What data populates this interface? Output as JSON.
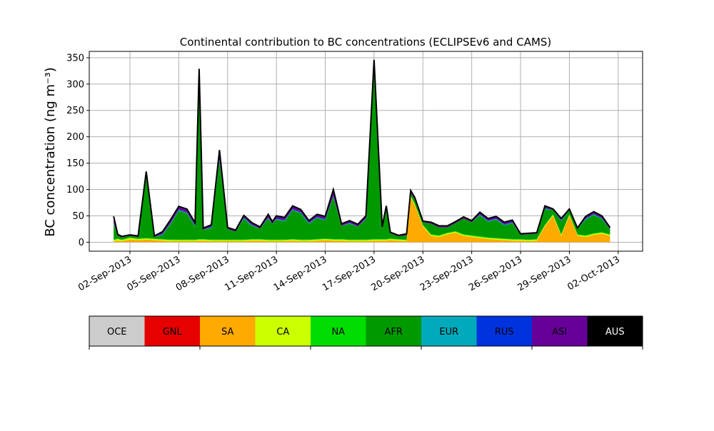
{
  "chart_data": {
    "type": "area",
    "title": "Continental contribution to BC concentrations (ECLIPSEv6 and CAMS)",
    "ylabel": "BC concentration (ng m⁻³)",
    "xlabel": "",
    "xlim": [
      "2013-08-30T12:00",
      "2013-10-03T12:00"
    ],
    "ylim": [
      -17,
      362
    ],
    "grid": true,
    "x_ticks": [
      "02-Sep-2013",
      "05-Sep-2013",
      "08-Sep-2013",
      "11-Sep-2013",
      "14-Sep-2013",
      "17-Sep-2013",
      "20-Sep-2013",
      "23-Sep-2013",
      "26-Sep-2013",
      "29-Sep-2013",
      "02-Oct-2013"
    ],
    "y_ticks": [
      0,
      50,
      100,
      150,
      200,
      250,
      300,
      350
    ],
    "x": [
      "2013-09-01T00:00",
      "2013-09-01T06:00",
      "2013-09-01T12:00",
      "2013-09-02T00:00",
      "2013-09-02T12:00",
      "2013-09-03T00:00",
      "2013-09-03T12:00",
      "2013-09-04T00:00",
      "2013-09-04T12:00",
      "2013-09-05T00:00",
      "2013-09-05T12:00",
      "2013-09-06T00:00",
      "2013-09-06T06:00",
      "2013-09-06T12:00",
      "2013-09-07T00:00",
      "2013-09-07T12:00",
      "2013-09-08T00:00",
      "2013-09-08T12:00",
      "2013-09-09T00:00",
      "2013-09-09T12:00",
      "2013-09-10T00:00",
      "2013-09-10T12:00",
      "2013-09-10T18:00",
      "2013-09-11T00:00",
      "2013-09-11T12:00",
      "2013-09-12T00:00",
      "2013-09-12T12:00",
      "2013-09-13T00:00",
      "2013-09-13T12:00",
      "2013-09-14T00:00",
      "2013-09-14T12:00",
      "2013-09-15T00:00",
      "2013-09-15T12:00",
      "2013-09-16T00:00",
      "2013-09-16T12:00",
      "2013-09-17T00:00",
      "2013-09-17T12:00",
      "2013-09-17T18:00",
      "2013-09-18T00:00",
      "2013-09-18T12:00",
      "2013-09-19T00:00",
      "2013-09-19T06:00",
      "2013-09-19T12:00",
      "2013-09-20T00:00",
      "2013-09-20T12:00",
      "2013-09-21T00:00",
      "2013-09-21T12:00",
      "2013-09-22T00:00",
      "2013-09-22T12:00",
      "2013-09-23T00:00",
      "2013-09-23T12:00",
      "2013-09-24T00:00",
      "2013-09-24T12:00",
      "2013-09-25T00:00",
      "2013-09-25T12:00",
      "2013-09-26T00:00",
      "2013-09-26T12:00",
      "2013-09-27T00:00",
      "2013-09-27T12:00",
      "2013-09-28T00:00",
      "2013-09-28T12:00",
      "2013-09-29T00:00",
      "2013-09-29T12:00",
      "2013-09-30T00:00",
      "2013-09-30T12:00",
      "2013-10-01T00:00",
      "2013-10-01T12:00"
    ],
    "series": [
      {
        "name": "OCE",
        "color": "#cccccc",
        "values": [
          0,
          0,
          0,
          0,
          0,
          0,
          0,
          0,
          0,
          0,
          0,
          0,
          0,
          0,
          0,
          0,
          0,
          0,
          0,
          0,
          0,
          0,
          0,
          0,
          0,
          0,
          0,
          0,
          0,
          0,
          0,
          0,
          0,
          0,
          0,
          0,
          0,
          0,
          0,
          0,
          0,
          0,
          0,
          0,
          0,
          0,
          0,
          0,
          0,
          0,
          0,
          0,
          0,
          0,
          0,
          0,
          0,
          0,
          0,
          0,
          0,
          0,
          0,
          0,
          0,
          0,
          0
        ]
      },
      {
        "name": "GNL",
        "color": "#e60000",
        "values": [
          0,
          0,
          0,
          0,
          0,
          0,
          0,
          0,
          0,
          0,
          0,
          0,
          0,
          0,
          0,
          0,
          0,
          0,
          0,
          0,
          0,
          0,
          0,
          0,
          0,
          0,
          0,
          0,
          0,
          0,
          0,
          0,
          0,
          0,
          0,
          0,
          0,
          0,
          0,
          0,
          0,
          0,
          0,
          0,
          0,
          0,
          0,
          0,
          0,
          0,
          0,
          0,
          0,
          0,
          0,
          0,
          0,
          0,
          0,
          0,
          0,
          0,
          0,
          0,
          0,
          0,
          0
        ]
      },
      {
        "name": "SA",
        "color": "#ffaa00",
        "values": [
          2,
          3,
          2,
          5,
          4,
          5,
          4,
          3,
          2,
          2,
          2,
          2,
          3,
          3,
          2,
          2,
          2,
          2,
          2,
          3,
          3,
          2,
          2,
          2,
          2,
          3,
          2,
          2,
          3,
          4,
          3,
          3,
          2,
          2,
          2,
          3,
          3,
          3,
          4,
          3,
          2,
          85,
          70,
          30,
          12,
          10,
          15,
          18,
          12,
          10,
          8,
          6,
          5,
          4,
          3,
          3,
          2,
          3,
          30,
          50,
          12,
          50,
          12,
          10,
          14,
          16,
          12
        ]
      },
      {
        "name": "CA",
        "color": "#ccff00",
        "values": [
          2,
          3,
          2,
          3,
          2,
          2,
          2,
          2,
          2,
          2,
          2,
          2,
          2,
          2,
          2,
          2,
          2,
          2,
          2,
          2,
          2,
          2,
          2,
          2,
          2,
          2,
          2,
          2,
          2,
          2,
          2,
          2,
          2,
          2,
          2,
          2,
          2,
          2,
          2,
          2,
          2,
          2,
          2,
          2,
          2,
          2,
          2,
          2,
          2,
          2,
          2,
          2,
          2,
          2,
          2,
          2,
          2,
          2,
          2,
          2,
          2,
          2,
          2,
          2,
          2,
          2,
          2
        ]
      },
      {
        "name": "NA",
        "color": "#00dd00",
        "values": [
          1,
          1,
          1,
          1,
          1,
          1,
          1,
          1,
          1,
          1,
          1,
          1,
          1,
          1,
          1,
          1,
          1,
          1,
          1,
          1,
          1,
          1,
          1,
          1,
          1,
          1,
          1,
          1,
          1,
          1,
          1,
          1,
          1,
          1,
          1,
          1,
          1,
          1,
          1,
          1,
          1,
          1,
          1,
          1,
          1,
          1,
          1,
          1,
          1,
          1,
          1,
          1,
          1,
          1,
          1,
          1,
          1,
          1,
          1,
          1,
          1,
          1,
          1,
          1,
          1,
          1,
          1
        ]
      },
      {
        "name": "AFR",
        "color": "#009900",
        "values": [
          30,
          5,
          4,
          3,
          3,
          120,
          3,
          8,
          30,
          55,
          50,
          25,
          300,
          18,
          22,
          150,
          20,
          15,
          40,
          25,
          20,
          40,
          30,
          38,
          35,
          55,
          50,
          30,
          40,
          35,
          80,
          25,
          30,
          25,
          38,
          330,
          20,
          55,
          10,
          5,
          8,
          5,
          8,
          5,
          20,
          15,
          10,
          15,
          30,
          25,
          40,
          30,
          35,
          25,
          30,
          8,
          10,
          10,
          30,
          8,
          25,
          8,
          10,
          30,
          35,
          25,
          10
        ]
      },
      {
        "name": "EUR",
        "color": "#00aabb",
        "values": [
          1,
          0,
          0,
          0,
          0,
          1,
          0,
          1,
          1,
          1,
          1,
          1,
          1,
          0,
          1,
          1,
          0,
          0,
          1,
          1,
          0,
          1,
          0,
          1,
          1,
          1,
          1,
          1,
          1,
          1,
          1,
          0,
          1,
          0,
          1,
          1,
          0,
          1,
          0,
          0,
          0,
          0,
          0,
          0,
          0,
          0,
          0,
          0,
          0,
          0,
          1,
          1,
          1,
          1,
          1,
          0,
          0,
          0,
          1,
          0,
          1,
          0,
          0,
          1,
          1,
          1,
          0
        ]
      },
      {
        "name": "RUS",
        "color": "#0033dd",
        "values": [
          1,
          0,
          0,
          0,
          0,
          1,
          0,
          1,
          1,
          1,
          1,
          1,
          2,
          0,
          1,
          1,
          0,
          0,
          1,
          1,
          0,
          1,
          0,
          1,
          1,
          1,
          1,
          1,
          1,
          1,
          1,
          0,
          1,
          0,
          1,
          1,
          0,
          1,
          0,
          0,
          0,
          0,
          0,
          0,
          0,
          0,
          0,
          0,
          0,
          0,
          1,
          1,
          1,
          1,
          1,
          0,
          0,
          0,
          1,
          0,
          1,
          0,
          0,
          1,
          1,
          1,
          0
        ]
      },
      {
        "name": "ASI",
        "color": "#660099",
        "values": [
          12,
          3,
          2,
          2,
          2,
          4,
          2,
          4,
          6,
          6,
          6,
          5,
          20,
          3,
          4,
          18,
          3,
          3,
          4,
          4,
          3,
          6,
          4,
          5,
          5,
          6,
          5,
          4,
          5,
          5,
          12,
          4,
          4,
          4,
          5,
          8,
          3,
          6,
          2,
          2,
          3,
          5,
          4,
          2,
          3,
          3,
          3,
          3,
          3,
          3,
          4,
          4,
          4,
          4,
          4,
          2,
          2,
          2,
          4,
          2,
          3,
          2,
          2,
          4,
          4,
          4,
          3
        ]
      },
      {
        "name": "AUS",
        "color": "#000000",
        "values": [
          0,
          0,
          0,
          0,
          0,
          0,
          0,
          0,
          0,
          0,
          0,
          0,
          0,
          0,
          0,
          0,
          0,
          0,
          0,
          0,
          0,
          0,
          0,
          0,
          0,
          0,
          0,
          0,
          0,
          0,
          0,
          0,
          0,
          0,
          0,
          0,
          0,
          0,
          0,
          0,
          0,
          0,
          0,
          0,
          0,
          0,
          0,
          0,
          0,
          0,
          0,
          0,
          0,
          0,
          0,
          0,
          0,
          0,
          0,
          0,
          0,
          0,
          0,
          0,
          0,
          0,
          0
        ]
      }
    ],
    "legend": {
      "placement": "bottom",
      "entries": [
        "OCE",
        "GNL",
        "SA",
        "CA",
        "NA",
        "AFR",
        "EUR",
        "RUS",
        "ASI",
        "AUS"
      ],
      "colors": [
        "#cccccc",
        "#e60000",
        "#ffaa00",
        "#ccff00",
        "#00dd00",
        "#009900",
        "#00aabb",
        "#0033dd",
        "#660099",
        "#000000"
      ]
    }
  }
}
